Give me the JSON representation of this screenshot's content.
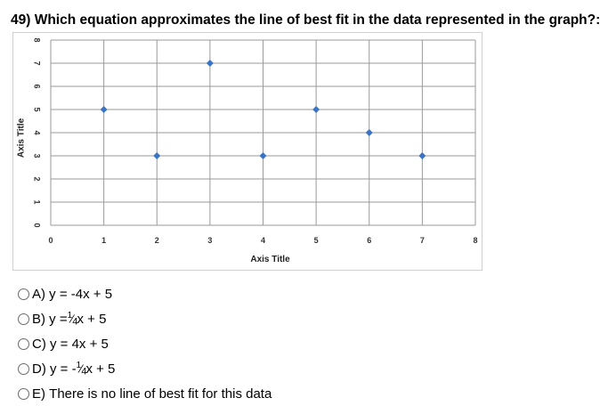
{
  "question": {
    "text": "49) Which equation approximates the line of best fit in the data represented in the graph?:"
  },
  "chart_data": {
    "type": "scatter",
    "title": "",
    "xlabel": "Axis Title",
    "ylabel": "Axis Title",
    "xlim": [
      0,
      8
    ],
    "ylim": [
      0,
      8
    ],
    "x_ticks": [
      "0",
      "1",
      "2",
      "3",
      "4",
      "5",
      "6",
      "7",
      "8"
    ],
    "y_ticks": [
      "0",
      "1",
      "2",
      "3",
      "4",
      "5",
      "6",
      "7",
      "8"
    ],
    "grid": true,
    "legend": "none",
    "marker_color": "#3b74c4",
    "grid_color": "#9a9a9a",
    "series": [
      {
        "points": [
          [
            1,
            5
          ],
          [
            2,
            3
          ],
          [
            3,
            7
          ],
          [
            4,
            3
          ],
          [
            5,
            5
          ],
          [
            6,
            4
          ],
          [
            7,
            3
          ]
        ]
      }
    ]
  },
  "options": [
    {
      "letter": "A)",
      "pre": "y = -4x + 5",
      "frac": "",
      "post": ""
    },
    {
      "letter": "B)",
      "pre": "y = ",
      "frac": "1/4",
      "post": " x + 5"
    },
    {
      "letter": "C)",
      "pre": "y = 4x + 5",
      "frac": "",
      "post": ""
    },
    {
      "letter": "D)",
      "pre": "y = - ",
      "frac": "1/4",
      "post": " x + 5"
    },
    {
      "letter": "E)",
      "pre": "There is no line of best fit for this data",
      "frac": "",
      "post": ""
    }
  ]
}
